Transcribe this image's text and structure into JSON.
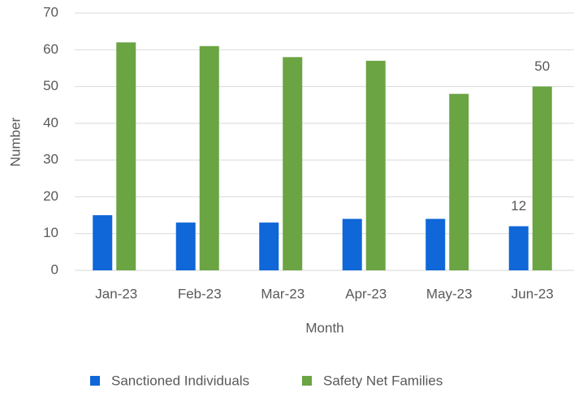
{
  "chart_data": {
    "type": "bar",
    "categories": [
      "Jan-23",
      "Feb-23",
      "Mar-23",
      "Apr-23",
      "May-23",
      "Jun-23"
    ],
    "series": [
      {
        "name": "Sanctioned Individuals",
        "color": "#0f67d8",
        "values": [
          15,
          13,
          13,
          14,
          14,
          12
        ],
        "value_labels": [
          null,
          null,
          null,
          null,
          null,
          "12"
        ]
      },
      {
        "name": "Safety Net Families",
        "color": "#6aa443",
        "values": [
          62,
          61,
          58,
          57,
          48,
          50
        ],
        "value_labels": [
          null,
          null,
          null,
          null,
          null,
          "50"
        ]
      }
    ],
    "x_label": "Month",
    "y_label": "Number",
    "ylim": [
      0,
      70
    ],
    "yticks": [
      0,
      10,
      20,
      30,
      40,
      50,
      60,
      70
    ],
    "grid": true,
    "legend": "bottom"
  }
}
